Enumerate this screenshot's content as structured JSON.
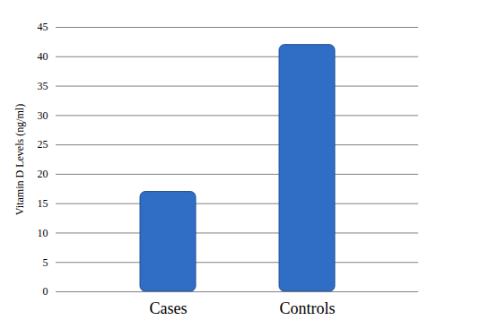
{
  "chart_data": {
    "type": "bar",
    "categories": [
      "Cases",
      "Controls"
    ],
    "values": [
      17,
      42
    ],
    "color": "#2f6ec4",
    "y_label": "Vitamin D Levels (ng/ml)",
    "ylim": [
      0,
      45
    ],
    "yticks": [
      0,
      5,
      10,
      15,
      20,
      25,
      30,
      35,
      40,
      45
    ],
    "grid": true
  }
}
